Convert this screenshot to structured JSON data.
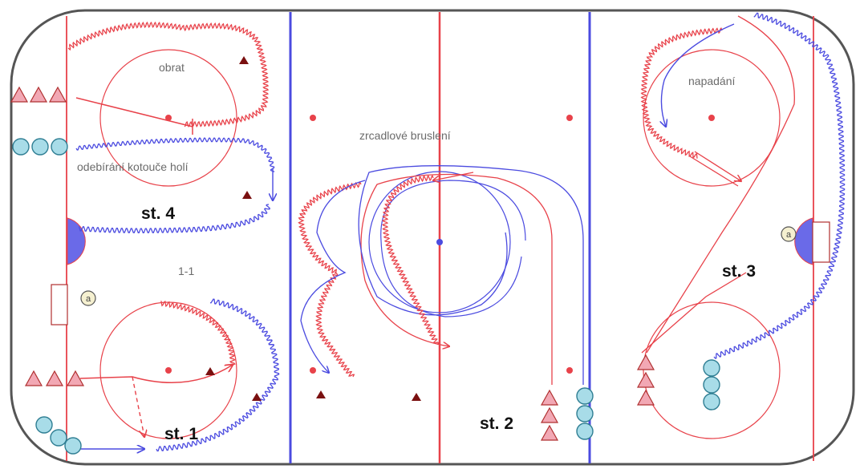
{
  "labels": {
    "obrat": "obrat",
    "odebirani": "odebírání kotouče holí",
    "one_on_one": "1-1",
    "zrcadlove": "zrcadlové bruslení",
    "napadani": "napadání"
  },
  "stations": {
    "st1": "st. 1",
    "st2": "st. 2",
    "st3": "st. 3",
    "st4": "st. 4"
  },
  "goalie_glyph": "a",
  "colors": {
    "red": "#e8424a",
    "blue": "#4b4be0",
    "triangle_fill": "#f2a8b4",
    "circle_fill": "#a8dce8",
    "cone": "#7a1010",
    "crease": "#6a6ae8",
    "board": "#555555"
  }
}
